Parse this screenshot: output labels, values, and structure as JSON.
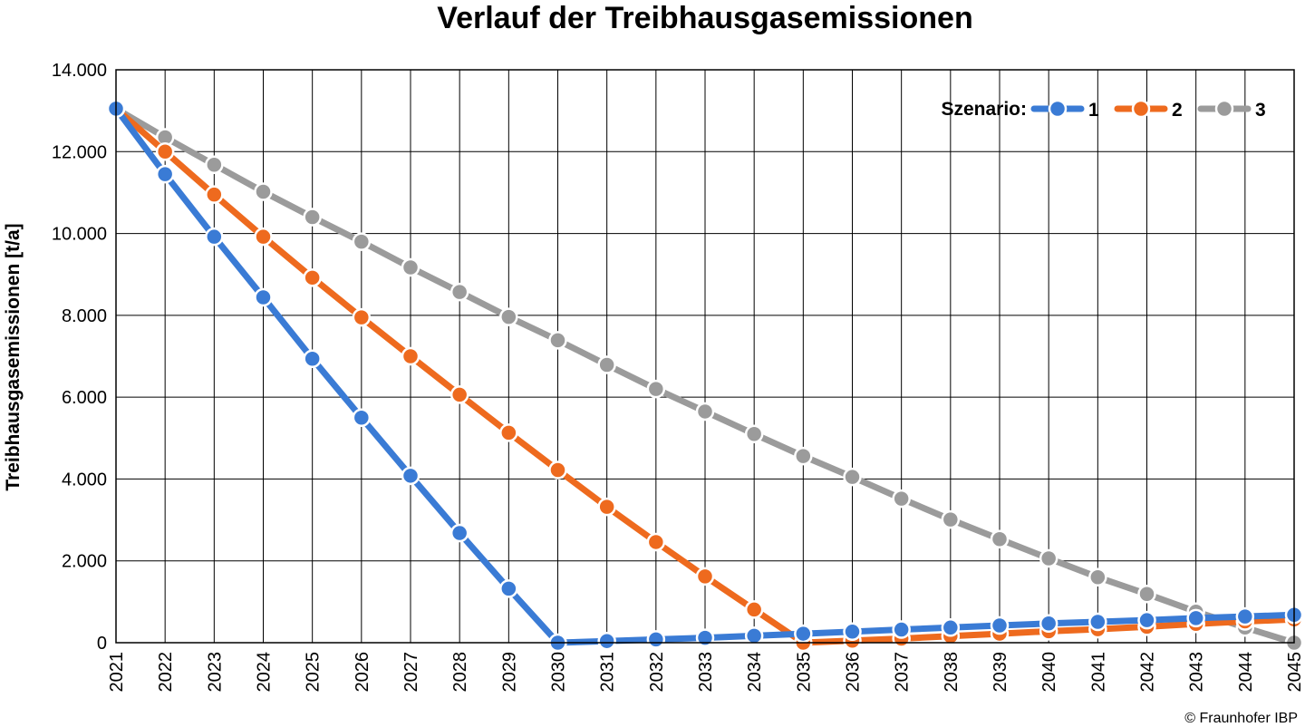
{
  "chart_data": {
    "type": "line",
    "title": "Verlauf der Treibhausgasemissionen",
    "ylabel": "Treibhausgasemissionen [t/a]",
    "xlabel": "",
    "ylim": [
      0,
      14000
    ],
    "yticks": [
      0,
      2000,
      4000,
      6000,
      8000,
      10000,
      12000,
      14000
    ],
    "ytick_labels": [
      "0",
      "2.000",
      "4.000",
      "6.000",
      "8.000",
      "10.000",
      "12.000",
      "14.000"
    ],
    "x": [
      "2021",
      "2022",
      "2023",
      "2024",
      "2025",
      "2026",
      "2027",
      "2028",
      "2029",
      "2030",
      "2031",
      "2032",
      "2033",
      "2034",
      "2035",
      "2036",
      "2037",
      "2038",
      "2039",
      "2040",
      "2041",
      "2042",
      "2043",
      "2044",
      "2045"
    ],
    "grid": true,
    "legend": {
      "title": "Szenario:",
      "position": "top-right"
    },
    "series": [
      {
        "name": "1",
        "color": "#3a7bd5",
        "values": [
          13050,
          11450,
          9920,
          8440,
          6940,
          5500,
          4080,
          2680,
          1320,
          0,
          40,
          80,
          120,
          170,
          220,
          270,
          320,
          370,
          420,
          470,
          510,
          550,
          600,
          640,
          680
        ]
      },
      {
        "name": "2",
        "color": "#ee6a1e",
        "values": [
          13050,
          12000,
          10950,
          9920,
          8920,
          7950,
          7000,
          6060,
          5130,
          4220,
          3320,
          2460,
          1620,
          810,
          0,
          50,
          100,
          160,
          220,
          280,
          330,
          390,
          460,
          520,
          570
        ]
      },
      {
        "name": "3",
        "color": "#9b9b9b",
        "values": [
          13050,
          12350,
          11680,
          11020,
          10400,
          9800,
          9170,
          8570,
          7960,
          7390,
          6790,
          6200,
          5650,
          5100,
          4560,
          4050,
          3520,
          3010,
          2530,
          2060,
          1600,
          1190,
          760,
          370,
          0
        ]
      }
    ]
  },
  "copyright": "© Fraunhofer IBP"
}
